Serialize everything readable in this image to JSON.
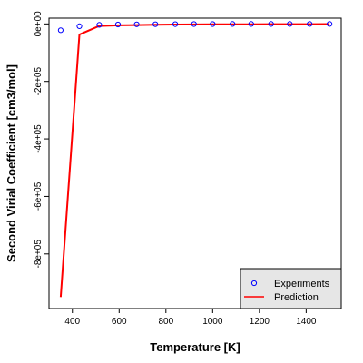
{
  "chart_data": {
    "type": "line",
    "title": "",
    "xlabel": "Temperature [K]",
    "ylabel": "Second Virial Coefficient [cm3/mol]",
    "xlim": [
      300,
      1550
    ],
    "ylim": [
      -990000,
      20000
    ],
    "x_ticks": [
      400,
      600,
      800,
      1000,
      1200,
      1400
    ],
    "y_ticks": [
      0,
      -200000,
      -400000,
      -600000,
      -800000
    ],
    "x_tick_labels": [
      "400",
      "600",
      "800",
      "1000",
      "1200",
      "1400"
    ],
    "y_tick_labels": [
      "0e+00",
      "-2e+05",
      "-4e+05",
      "-6e+05",
      "-8e+05"
    ],
    "grid": false,
    "legend_position": "bottom-right",
    "series": [
      {
        "name": "Experiments",
        "type": "scatter",
        "color": "#0000ff",
        "marker": "open-circle",
        "x": [
          350,
          430,
          515,
          595,
          675,
          755,
          840,
          920,
          1000,
          1085,
          1165,
          1250,
          1330,
          1415,
          1500
        ],
        "y": [
          -22000,
          -8000,
          -3500,
          -2000,
          -1400,
          -1000,
          -700,
          -500,
          -400,
          -300,
          -250,
          -200,
          -150,
          -120,
          -100
        ]
      },
      {
        "name": "Prediction",
        "type": "line",
        "color": "#ff0000",
        "x": [
          350,
          430,
          515,
          595,
          675,
          755,
          840,
          920,
          1000,
          1085,
          1165,
          1250,
          1330,
          1415,
          1500
        ],
        "y": [
          -950000,
          -37000,
          -7000,
          -5000,
          -4000,
          -3000,
          -2200,
          -1800,
          -1500,
          -1200,
          -1000,
          -900,
          -800,
          -700,
          -600
        ]
      }
    ]
  }
}
